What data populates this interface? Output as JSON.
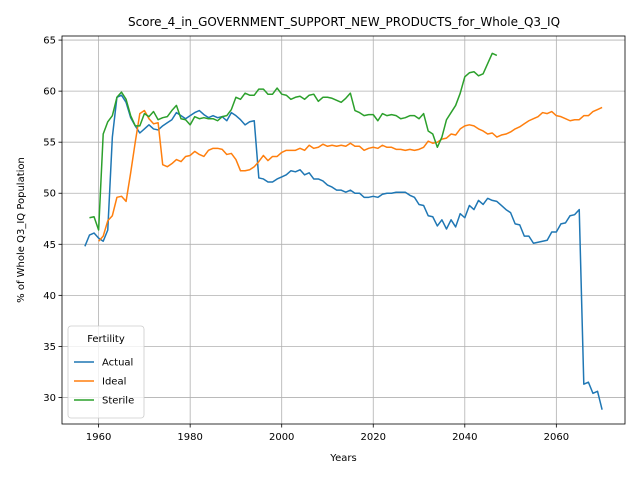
{
  "chart_data": {
    "type": "line",
    "title": "Score_4_in_GOVERNMENT_SUPPORT_NEW_PRODUCTS_for_Whole_Q3_IQ",
    "xlabel": "Years",
    "ylabel": "% of Whole Q3_IQ Population",
    "xlim": [
      1952,
      2075
    ],
    "ylim": [
      27.4,
      65.4
    ],
    "x_ticks": [
      1960,
      1980,
      2000,
      2020,
      2040,
      2060
    ],
    "y_ticks": [
      30,
      35,
      40,
      45,
      50,
      55,
      60,
      65
    ],
    "grid": true,
    "legend": {
      "title": "Fertility",
      "position": "lower-left"
    },
    "series": [
      {
        "name": "Actual",
        "color": "#1f77b4",
        "points": [
          [
            1957,
            44.8
          ],
          [
            1958,
            45.9
          ],
          [
            1959,
            46.1
          ],
          [
            1960,
            45.6
          ],
          [
            1961,
            45.3
          ],
          [
            1962,
            46.4
          ],
          [
            1963,
            55.5
          ],
          [
            1964,
            59.4
          ],
          [
            1965,
            59.6
          ],
          [
            1966,
            58.9
          ],
          [
            1967,
            57.4
          ],
          [
            1968,
            56.6
          ],
          [
            1969,
            55.9
          ],
          [
            1970,
            56.3
          ],
          [
            1971,
            56.7
          ],
          [
            1972,
            56.3
          ],
          [
            1973,
            56.2
          ],
          [
            1974,
            56.6
          ],
          [
            1975,
            56.9
          ],
          [
            1976,
            57.2
          ],
          [
            1977,
            57.9
          ],
          [
            1978,
            57.6
          ],
          [
            1979,
            57.3
          ],
          [
            1980,
            57.6
          ],
          [
            1981,
            57.9
          ],
          [
            1982,
            58.1
          ],
          [
            1983,
            57.7
          ],
          [
            1984,
            57.4
          ],
          [
            1985,
            57.6
          ],
          [
            1986,
            57.4
          ],
          [
            1987,
            57.5
          ],
          [
            1988,
            57.1
          ],
          [
            1989,
            57.9
          ],
          [
            1990,
            57.6
          ],
          [
            1991,
            57.2
          ],
          [
            1992,
            56.7
          ],
          [
            1993,
            57.0
          ],
          [
            1994,
            57.1
          ],
          [
            1995,
            51.5
          ],
          [
            1996,
            51.4
          ],
          [
            1997,
            51.1
          ],
          [
            1998,
            51.1
          ],
          [
            1999,
            51.4
          ],
          [
            2000,
            51.6
          ],
          [
            2001,
            51.8
          ],
          [
            2002,
            52.2
          ],
          [
            2003,
            52.1
          ],
          [
            2004,
            52.3
          ],
          [
            2005,
            51.8
          ],
          [
            2006,
            52.0
          ],
          [
            2007,
            51.4
          ],
          [
            2008,
            51.4
          ],
          [
            2009,
            51.2
          ],
          [
            2010,
            50.8
          ],
          [
            2011,
            50.6
          ],
          [
            2012,
            50.3
          ],
          [
            2013,
            50.3
          ],
          [
            2014,
            50.1
          ],
          [
            2015,
            50.3
          ],
          [
            2016,
            50.0
          ],
          [
            2017,
            50.0
          ],
          [
            2018,
            49.6
          ],
          [
            2019,
            49.6
          ],
          [
            2020,
            49.7
          ],
          [
            2021,
            49.6
          ],
          [
            2022,
            49.9
          ],
          [
            2023,
            50.0
          ],
          [
            2024,
            50.0
          ],
          [
            2025,
            50.1
          ],
          [
            2026,
            50.1
          ],
          [
            2027,
            50.1
          ],
          [
            2028,
            49.8
          ],
          [
            2029,
            49.6
          ],
          [
            2030,
            48.9
          ],
          [
            2031,
            48.8
          ],
          [
            2032,
            47.8
          ],
          [
            2033,
            47.7
          ],
          [
            2034,
            46.8
          ],
          [
            2035,
            47.4
          ],
          [
            2036,
            46.5
          ],
          [
            2037,
            47.4
          ],
          [
            2038,
            46.7
          ],
          [
            2039,
            48.0
          ],
          [
            2040,
            47.6
          ],
          [
            2041,
            48.8
          ],
          [
            2042,
            48.4
          ],
          [
            2043,
            49.3
          ],
          [
            2044,
            48.9
          ],
          [
            2045,
            49.5
          ],
          [
            2046,
            49.3
          ],
          [
            2047,
            49.2
          ],
          [
            2048,
            48.8
          ],
          [
            2049,
            48.4
          ],
          [
            2050,
            48.1
          ],
          [
            2051,
            47.0
          ],
          [
            2052,
            46.9
          ],
          [
            2053,
            45.8
          ],
          [
            2054,
            45.8
          ],
          [
            2055,
            45.1
          ],
          [
            2056,
            45.2
          ],
          [
            2057,
            45.3
          ],
          [
            2058,
            45.4
          ],
          [
            2059,
            46.2
          ],
          [
            2060,
            46.2
          ],
          [
            2061,
            47.0
          ],
          [
            2062,
            47.1
          ],
          [
            2063,
            47.8
          ],
          [
            2064,
            47.9
          ],
          [
            2065,
            48.4
          ],
          [
            2066,
            31.3
          ],
          [
            2067,
            31.5
          ],
          [
            2068,
            30.4
          ],
          [
            2069,
            30.6
          ],
          [
            2070,
            28.8
          ]
        ]
      },
      {
        "name": "Ideal",
        "color": "#ff7f0e",
        "points": [
          [
            1960,
            45.3
          ],
          [
            1961,
            45.8
          ],
          [
            1962,
            47.3
          ],
          [
            1963,
            47.8
          ],
          [
            1964,
            49.6
          ],
          [
            1965,
            49.7
          ],
          [
            1966,
            49.2
          ],
          [
            1967,
            52.0
          ],
          [
            1968,
            55.0
          ],
          [
            1969,
            57.8
          ],
          [
            1970,
            58.1
          ],
          [
            1971,
            57.3
          ],
          [
            1972,
            56.8
          ],
          [
            1973,
            56.9
          ],
          [
            1974,
            52.8
          ],
          [
            1975,
            52.6
          ],
          [
            1976,
            52.9
          ],
          [
            1977,
            53.3
          ],
          [
            1978,
            53.1
          ],
          [
            1979,
            53.6
          ],
          [
            1980,
            53.7
          ],
          [
            1981,
            54.1
          ],
          [
            1982,
            53.8
          ],
          [
            1983,
            53.6
          ],
          [
            1984,
            54.2
          ],
          [
            1985,
            54.4
          ],
          [
            1986,
            54.4
          ],
          [
            1987,
            54.3
          ],
          [
            1988,
            53.8
          ],
          [
            1989,
            53.9
          ],
          [
            1990,
            53.3
          ],
          [
            1991,
            52.2
          ],
          [
            1992,
            52.2
          ],
          [
            1993,
            52.3
          ],
          [
            1994,
            52.6
          ],
          [
            1995,
            53.1
          ],
          [
            1996,
            53.7
          ],
          [
            1997,
            53.2
          ],
          [
            1998,
            53.6
          ],
          [
            1999,
            53.6
          ],
          [
            2000,
            54.0
          ],
          [
            2001,
            54.2
          ],
          [
            2002,
            54.2
          ],
          [
            2003,
            54.2
          ],
          [
            2004,
            54.4
          ],
          [
            2005,
            54.2
          ],
          [
            2006,
            54.7
          ],
          [
            2007,
            54.4
          ],
          [
            2008,
            54.5
          ],
          [
            2009,
            54.8
          ],
          [
            2010,
            54.6
          ],
          [
            2011,
            54.7
          ],
          [
            2012,
            54.6
          ],
          [
            2013,
            54.7
          ],
          [
            2014,
            54.6
          ],
          [
            2015,
            54.9
          ],
          [
            2016,
            54.6
          ],
          [
            2017,
            54.6
          ],
          [
            2018,
            54.2
          ],
          [
            2019,
            54.4
          ],
          [
            2020,
            54.5
          ],
          [
            2021,
            54.4
          ],
          [
            2022,
            54.7
          ],
          [
            2023,
            54.5
          ],
          [
            2024,
            54.5
          ],
          [
            2025,
            54.3
          ],
          [
            2026,
            54.3
          ],
          [
            2027,
            54.2
          ],
          [
            2028,
            54.3
          ],
          [
            2029,
            54.2
          ],
          [
            2030,
            54.3
          ],
          [
            2031,
            54.5
          ],
          [
            2032,
            55.1
          ],
          [
            2033,
            54.9
          ],
          [
            2034,
            55.0
          ],
          [
            2035,
            55.3
          ],
          [
            2036,
            55.4
          ],
          [
            2037,
            55.8
          ],
          [
            2038,
            55.7
          ],
          [
            2039,
            56.3
          ],
          [
            2040,
            56.6
          ],
          [
            2041,
            56.7
          ],
          [
            2042,
            56.6
          ],
          [
            2043,
            56.3
          ],
          [
            2044,
            56.1
          ],
          [
            2045,
            55.8
          ],
          [
            2046,
            55.9
          ],
          [
            2047,
            55.5
          ],
          [
            2048,
            55.7
          ],
          [
            2049,
            55.8
          ],
          [
            2050,
            56.0
          ],
          [
            2051,
            56.3
          ],
          [
            2052,
            56.5
          ],
          [
            2053,
            56.8
          ],
          [
            2054,
            57.1
          ],
          [
            2055,
            57.3
          ],
          [
            2056,
            57.5
          ],
          [
            2057,
            57.9
          ],
          [
            2058,
            57.8
          ],
          [
            2059,
            58.0
          ],
          [
            2060,
            57.6
          ],
          [
            2061,
            57.5
          ],
          [
            2062,
            57.3
          ],
          [
            2063,
            57.1
          ],
          [
            2064,
            57.2
          ],
          [
            2065,
            57.2
          ],
          [
            2066,
            57.6
          ],
          [
            2067,
            57.6
          ],
          [
            2068,
            58.0
          ],
          [
            2069,
            58.2
          ],
          [
            2070,
            58.4
          ]
        ]
      },
      {
        "name": "Sterile",
        "color": "#2ca02c",
        "points": [
          [
            1958,
            47.6
          ],
          [
            1959,
            47.7
          ],
          [
            1960,
            46.4
          ],
          [
            1961,
            55.8
          ],
          [
            1962,
            57.0
          ],
          [
            1963,
            57.6
          ],
          [
            1964,
            59.4
          ],
          [
            1965,
            59.9
          ],
          [
            1966,
            59.2
          ],
          [
            1967,
            57.6
          ],
          [
            1968,
            56.6
          ],
          [
            1969,
            56.6
          ],
          [
            1970,
            57.8
          ],
          [
            1971,
            57.5
          ],
          [
            1972,
            58.0
          ],
          [
            1973,
            57.2
          ],
          [
            1974,
            57.4
          ],
          [
            1975,
            57.5
          ],
          [
            1976,
            58.1
          ],
          [
            1977,
            58.6
          ],
          [
            1978,
            57.3
          ],
          [
            1979,
            57.2
          ],
          [
            1980,
            56.7
          ],
          [
            1981,
            57.5
          ],
          [
            1982,
            57.3
          ],
          [
            1983,
            57.4
          ],
          [
            1984,
            57.3
          ],
          [
            1985,
            57.3
          ],
          [
            1986,
            57.1
          ],
          [
            1987,
            57.5
          ],
          [
            1988,
            57.6
          ],
          [
            1989,
            58.2
          ],
          [
            1990,
            59.4
          ],
          [
            1991,
            59.2
          ],
          [
            1992,
            59.8
          ],
          [
            1993,
            59.6
          ],
          [
            1994,
            59.6
          ],
          [
            1995,
            60.2
          ],
          [
            1996,
            60.2
          ],
          [
            1997,
            59.7
          ],
          [
            1998,
            59.7
          ],
          [
            1999,
            60.3
          ],
          [
            2000,
            59.7
          ],
          [
            2001,
            59.6
          ],
          [
            2002,
            59.2
          ],
          [
            2003,
            59.4
          ],
          [
            2004,
            59.5
          ],
          [
            2005,
            59.2
          ],
          [
            2006,
            59.6
          ],
          [
            2007,
            59.7
          ],
          [
            2008,
            59.0
          ],
          [
            2009,
            59.4
          ],
          [
            2010,
            59.4
          ],
          [
            2011,
            59.3
          ],
          [
            2012,
            59.1
          ],
          [
            2013,
            58.9
          ],
          [
            2014,
            59.3
          ],
          [
            2015,
            59.8
          ],
          [
            2016,
            58.1
          ],
          [
            2017,
            57.9
          ],
          [
            2018,
            57.6
          ],
          [
            2019,
            57.7
          ],
          [
            2020,
            57.7
          ],
          [
            2021,
            57.1
          ],
          [
            2022,
            57.8
          ],
          [
            2023,
            57.6
          ],
          [
            2024,
            57.7
          ],
          [
            2025,
            57.6
          ],
          [
            2026,
            57.3
          ],
          [
            2027,
            57.4
          ],
          [
            2028,
            57.6
          ],
          [
            2029,
            57.6
          ],
          [
            2030,
            57.3
          ],
          [
            2031,
            57.8
          ],
          [
            2032,
            56.1
          ],
          [
            2033,
            55.8
          ],
          [
            2034,
            54.5
          ],
          [
            2035,
            55.5
          ],
          [
            2036,
            57.2
          ],
          [
            2037,
            57.9
          ],
          [
            2038,
            58.6
          ],
          [
            2039,
            59.8
          ],
          [
            2040,
            61.4
          ],
          [
            2041,
            61.8
          ],
          [
            2042,
            61.9
          ],
          [
            2043,
            61.5
          ],
          [
            2044,
            61.7
          ],
          [
            2045,
            62.7
          ],
          [
            2046,
            63.7
          ],
          [
            2047,
            63.5
          ]
        ]
      }
    ]
  }
}
